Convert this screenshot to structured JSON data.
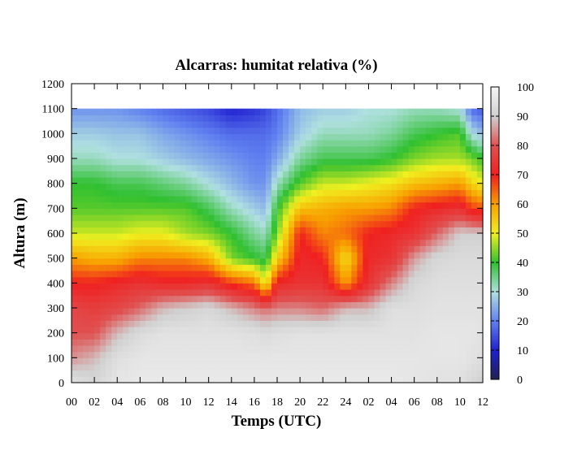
{
  "chart_data": {
    "type": "heatmap",
    "title": "Alcarras: humitat relativa (%)",
    "xlabel": "Temps (UTC)",
    "ylabel": "Altura (m)",
    "x_ticks": [
      "00",
      "02",
      "04",
      "06",
      "08",
      "10",
      "12",
      "14",
      "16",
      "18",
      "20",
      "22",
      "24",
      "02",
      "04",
      "06",
      "08",
      "10",
      "12"
    ],
    "x_range_hours": [
      0,
      36
    ],
    "y_ticks": [
      0,
      100,
      200,
      300,
      400,
      500,
      600,
      700,
      800,
      900,
      1000,
      1100,
      1200
    ],
    "ylim": [
      0,
      1200
    ],
    "colorbar": {
      "label_ticks": [
        0,
        10,
        20,
        30,
        40,
        50,
        60,
        70,
        80,
        90,
        100
      ],
      "range": [
        0,
        100
      ],
      "stops": [
        {
          "value": 0,
          "color": "#202050"
        },
        {
          "value": 10,
          "color": "#2020d0"
        },
        {
          "value": 20,
          "color": "#6080f0"
        },
        {
          "value": 30,
          "color": "#b0e0e0"
        },
        {
          "value": 40,
          "color": "#30c030"
        },
        {
          "value": 50,
          "color": "#f0f020"
        },
        {
          "value": 60,
          "color": "#f8a000"
        },
        {
          "value": 70,
          "color": "#f02020"
        },
        {
          "value": 80,
          "color": "#e05050"
        },
        {
          "value": 90,
          "color": "#d0d0d0"
        },
        {
          "value": 100,
          "color": "#f4f4f4"
        }
      ]
    },
    "data_top_altitude": 1100,
    "series": [
      {
        "time": 0,
        "profile": [
          [
            0,
            95
          ],
          [
            100,
            85
          ],
          [
            200,
            80
          ],
          [
            300,
            78
          ],
          [
            400,
            70
          ],
          [
            500,
            60
          ],
          [
            600,
            48
          ],
          [
            700,
            42
          ],
          [
            800,
            40
          ],
          [
            900,
            32
          ],
          [
            1000,
            28
          ],
          [
            1100,
            22
          ]
        ]
      },
      {
        "time": 2,
        "profile": [
          [
            0,
            92
          ],
          [
            100,
            88
          ],
          [
            200,
            80
          ],
          [
            300,
            76
          ],
          [
            400,
            70
          ],
          [
            500,
            58
          ],
          [
            600,
            48
          ],
          [
            700,
            42
          ],
          [
            800,
            40
          ],
          [
            900,
            32
          ],
          [
            1000,
            28
          ],
          [
            1100,
            22
          ]
        ]
      },
      {
        "time": 4,
        "profile": [
          [
            0,
            96
          ],
          [
            100,
            94
          ],
          [
            200,
            88
          ],
          [
            300,
            78
          ],
          [
            400,
            72
          ],
          [
            500,
            58
          ],
          [
            600,
            48
          ],
          [
            700,
            42
          ],
          [
            800,
            38
          ],
          [
            900,
            30
          ],
          [
            1000,
            27
          ],
          [
            1100,
            22
          ]
        ]
      },
      {
        "time": 6,
        "profile": [
          [
            0,
            97
          ],
          [
            100,
            96
          ],
          [
            200,
            93
          ],
          [
            300,
            82
          ],
          [
            400,
            74
          ],
          [
            500,
            62
          ],
          [
            600,
            50
          ],
          [
            700,
            42
          ],
          [
            800,
            38
          ],
          [
            900,
            30
          ],
          [
            1000,
            27
          ],
          [
            1100,
            20
          ]
        ]
      },
      {
        "time": 8,
        "profile": [
          [
            0,
            97
          ],
          [
            100,
            96
          ],
          [
            200,
            95
          ],
          [
            300,
            88
          ],
          [
            400,
            72
          ],
          [
            500,
            62
          ],
          [
            600,
            50
          ],
          [
            700,
            42
          ],
          [
            800,
            36
          ],
          [
            900,
            28
          ],
          [
            1000,
            24
          ],
          [
            1100,
            18
          ]
        ]
      },
      {
        "time": 10,
        "profile": [
          [
            0,
            97
          ],
          [
            100,
            96
          ],
          [
            200,
            95
          ],
          [
            300,
            90
          ],
          [
            400,
            72
          ],
          [
            500,
            62
          ],
          [
            600,
            46
          ],
          [
            700,
            42
          ],
          [
            800,
            34
          ],
          [
            900,
            26
          ],
          [
            1000,
            22
          ],
          [
            1100,
            16
          ]
        ]
      },
      {
        "time": 12,
        "profile": [
          [
            0,
            97
          ],
          [
            100,
            96
          ],
          [
            200,
            95
          ],
          [
            300,
            92
          ],
          [
            400,
            74
          ],
          [
            500,
            58
          ],
          [
            600,
            44
          ],
          [
            700,
            38
          ],
          [
            800,
            30
          ],
          [
            900,
            24
          ],
          [
            1000,
            20
          ],
          [
            1100,
            14
          ]
        ]
      },
      {
        "time": 14,
        "profile": [
          [
            0,
            97
          ],
          [
            100,
            96
          ],
          [
            200,
            95
          ],
          [
            300,
            88
          ],
          [
            400,
            68
          ],
          [
            500,
            44
          ],
          [
            600,
            40
          ],
          [
            700,
            32
          ],
          [
            800,
            26
          ],
          [
            900,
            22
          ],
          [
            1000,
            18
          ],
          [
            1100,
            10
          ]
        ]
      },
      {
        "time": 16,
        "profile": [
          [
            0,
            97
          ],
          [
            100,
            96
          ],
          [
            200,
            94
          ],
          [
            300,
            84
          ],
          [
            400,
            64
          ],
          [
            500,
            40
          ],
          [
            600,
            34
          ],
          [
            700,
            28
          ],
          [
            800,
            22
          ],
          [
            900,
            20
          ],
          [
            1000,
            18
          ],
          [
            1100,
            12
          ]
        ]
      },
      {
        "time": 17,
        "profile": [
          [
            0,
            97
          ],
          [
            100,
            96
          ],
          [
            200,
            93
          ],
          [
            300,
            82
          ],
          [
            400,
            50
          ],
          [
            500,
            38
          ],
          [
            600,
            32
          ],
          [
            700,
            26
          ],
          [
            800,
            22
          ],
          [
            900,
            20
          ],
          [
            1000,
            18
          ],
          [
            1100,
            14
          ]
        ]
      },
      {
        "time": 18,
        "profile": [
          [
            0,
            97
          ],
          [
            100,
            96
          ],
          [
            200,
            94
          ],
          [
            300,
            84
          ],
          [
            400,
            72
          ],
          [
            500,
            54
          ],
          [
            600,
            44
          ],
          [
            700,
            40
          ],
          [
            800,
            32
          ],
          [
            900,
            24
          ],
          [
            1000,
            20
          ],
          [
            1100,
            18
          ]
        ]
      },
      {
        "time": 20,
        "profile": [
          [
            0,
            97
          ],
          [
            100,
            96
          ],
          [
            200,
            95
          ],
          [
            300,
            84
          ],
          [
            400,
            74
          ],
          [
            500,
            72
          ],
          [
            600,
            70
          ],
          [
            700,
            56
          ],
          [
            800,
            42
          ],
          [
            900,
            34
          ],
          [
            1000,
            28
          ],
          [
            1100,
            26
          ]
        ]
      },
      {
        "time": 22,
        "profile": [
          [
            0,
            97
          ],
          [
            100,
            96
          ],
          [
            200,
            95
          ],
          [
            300,
            82
          ],
          [
            400,
            74
          ],
          [
            500,
            70
          ],
          [
            600,
            62
          ],
          [
            700,
            58
          ],
          [
            800,
            48
          ],
          [
            900,
            38
          ],
          [
            1000,
            32
          ],
          [
            1100,
            28
          ]
        ]
      },
      {
        "time": 24,
        "profile": [
          [
            0,
            97
          ],
          [
            100,
            96
          ],
          [
            200,
            95
          ],
          [
            300,
            88
          ],
          [
            400,
            60
          ],
          [
            500,
            52
          ],
          [
            600,
            64
          ],
          [
            700,
            60
          ],
          [
            800,
            48
          ],
          [
            900,
            38
          ],
          [
            1000,
            32
          ],
          [
            1100,
            28
          ]
        ]
      },
      {
        "time": 26,
        "profile": [
          [
            0,
            97
          ],
          [
            100,
            96
          ],
          [
            200,
            95
          ],
          [
            300,
            88
          ],
          [
            400,
            74
          ],
          [
            500,
            72
          ],
          [
            600,
            70
          ],
          [
            700,
            60
          ],
          [
            800,
            50
          ],
          [
            900,
            38
          ],
          [
            1000,
            32
          ],
          [
            1100,
            30
          ]
        ]
      },
      {
        "time": 28,
        "profile": [
          [
            0,
            97
          ],
          [
            100,
            96
          ],
          [
            200,
            95
          ],
          [
            300,
            94
          ],
          [
            400,
            84
          ],
          [
            500,
            74
          ],
          [
            600,
            72
          ],
          [
            700,
            62
          ],
          [
            800,
            52
          ],
          [
            900,
            40
          ],
          [
            1000,
            34
          ],
          [
            1100,
            30
          ]
        ]
      },
      {
        "time": 30,
        "profile": [
          [
            0,
            96
          ],
          [
            100,
            96
          ],
          [
            200,
            95
          ],
          [
            300,
            94
          ],
          [
            400,
            92
          ],
          [
            500,
            86
          ],
          [
            600,
            74
          ],
          [
            700,
            70
          ],
          [
            800,
            56
          ],
          [
            900,
            44
          ],
          [
            1000,
            38
          ],
          [
            1100,
            32
          ]
        ]
      },
      {
        "time": 32,
        "profile": [
          [
            0,
            95
          ],
          [
            100,
            96
          ],
          [
            200,
            96
          ],
          [
            300,
            95
          ],
          [
            400,
            94
          ],
          [
            500,
            92
          ],
          [
            600,
            82
          ],
          [
            700,
            72
          ],
          [
            800,
            58
          ],
          [
            900,
            46
          ],
          [
            1000,
            40
          ],
          [
            1100,
            32
          ]
        ]
      },
      {
        "time": 34,
        "profile": [
          [
            0,
            95
          ],
          [
            100,
            96
          ],
          [
            200,
            96
          ],
          [
            300,
            95
          ],
          [
            400,
            94
          ],
          [
            500,
            93
          ],
          [
            600,
            90
          ],
          [
            700,
            74
          ],
          [
            800,
            60
          ],
          [
            900,
            46
          ],
          [
            1000,
            42
          ],
          [
            1100,
            30
          ]
        ]
      },
      {
        "time": 35,
        "profile": [
          [
            0,
            92
          ],
          [
            100,
            95
          ],
          [
            200,
            96
          ],
          [
            300,
            95
          ],
          [
            400,
            94
          ],
          [
            500,
            93
          ],
          [
            600,
            90
          ],
          [
            700,
            68
          ],
          [
            800,
            54
          ],
          [
            900,
            44
          ],
          [
            1000,
            30
          ],
          [
            1100,
            18
          ]
        ]
      },
      {
        "time": 36,
        "profile": [
          [
            0,
            90
          ],
          [
            100,
            94
          ],
          [
            200,
            95
          ],
          [
            300,
            95
          ],
          [
            400,
            94
          ],
          [
            500,
            93
          ],
          [
            600,
            90
          ],
          [
            700,
            66
          ],
          [
            800,
            50
          ],
          [
            900,
            40
          ],
          [
            1000,
            26
          ],
          [
            1100,
            16
          ]
        ]
      }
    ]
  }
}
